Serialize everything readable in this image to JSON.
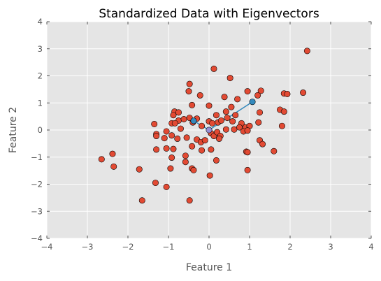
{
  "chart_data": {
    "type": "scatter",
    "title": "Standardized Data with Eigenvectors",
    "xlabel": "Feature 1",
    "ylabel": "Feature 2",
    "xlim": [
      -4,
      4
    ],
    "ylim": [
      -4,
      4
    ],
    "xticks": [
      -4,
      -3,
      -2,
      -1,
      0,
      1,
      2,
      3,
      4
    ],
    "yticks": [
      -4,
      -3,
      -2,
      -1,
      0,
      1,
      2,
      3,
      4
    ],
    "xtick_labels": [
      "−4",
      "−3",
      "−2",
      "−1",
      "0",
      "1",
      "2",
      "3",
      "4"
    ],
    "ytick_labels": [
      "−4",
      "−3",
      "−2",
      "−1",
      "0",
      "1",
      "2",
      "3",
      "4"
    ],
    "grid": true,
    "colors": {
      "background": "#e5e5e5",
      "grid": "#ffffff",
      "points": "#e24a33",
      "eigen_points": "#348abd",
      "mean_point": "#988ed5",
      "marker_edge": "#000000"
    },
    "series": [
      {
        "points": [
          [
            2.42,
            2.92
          ],
          [
            0.12,
            2.26
          ],
          [
            0.52,
            1.92
          ],
          [
            -0.48,
            1.7
          ],
          [
            -0.5,
            1.43
          ],
          [
            -0.22,
            1.28
          ],
          [
            0.38,
            1.22
          ],
          [
            0.7,
            1.14
          ],
          [
            0.95,
            1.43
          ],
          [
            1.28,
            1.45
          ],
          [
            1.2,
            1.28
          ],
          [
            1.85,
            1.35
          ],
          [
            1.93,
            1.33
          ],
          [
            2.32,
            1.38
          ],
          [
            -0.42,
            0.92
          ],
          [
            0.0,
            0.9
          ],
          [
            -0.85,
            0.68
          ],
          [
            -0.75,
            0.65
          ],
          [
            -0.88,
            0.55
          ],
          [
            -0.75,
            0.35
          ],
          [
            -0.62,
            0.4
          ],
          [
            -0.48,
            0.45
          ],
          [
            -0.3,
            0.42
          ],
          [
            -0.4,
            0.28
          ],
          [
            -0.92,
            0.25
          ],
          [
            -0.84,
            0.25
          ],
          [
            -0.7,
            0.05
          ],
          [
            -0.18,
            0.15
          ],
          [
            0.0,
            0.32
          ],
          [
            0.08,
            0.25
          ],
          [
            0.22,
            0.28
          ],
          [
            0.18,
            0.55
          ],
          [
            0.42,
            0.68
          ],
          [
            0.55,
            0.85
          ],
          [
            0.65,
            0.55
          ],
          [
            0.45,
            0.45
          ],
          [
            0.3,
            0.35
          ],
          [
            0.58,
            0.32
          ],
          [
            0.8,
            0.25
          ],
          [
            0.9,
            0.1
          ],
          [
            1.0,
            0.15
          ],
          [
            1.75,
            0.75
          ],
          [
            1.85,
            0.68
          ],
          [
            1.8,
            0.15
          ],
          [
            1.25,
            0.65
          ],
          [
            1.22,
            0.28
          ],
          [
            -1.35,
            0.22
          ],
          [
            -1.3,
            -0.15
          ],
          [
            -1.3,
            -0.22
          ],
          [
            -1.05,
            -0.05
          ],
          [
            -1.1,
            -0.3
          ],
          [
            -0.92,
            -0.2
          ],
          [
            -0.78,
            -0.32
          ],
          [
            -0.55,
            -0.28
          ],
          [
            -0.42,
            -0.6
          ],
          [
            -0.3,
            -0.35
          ],
          [
            -0.2,
            -0.45
          ],
          [
            -0.1,
            -0.38
          ],
          [
            0.05,
            -0.12
          ],
          [
            0.12,
            -0.22
          ],
          [
            0.2,
            -0.08
          ],
          [
            0.28,
            -0.22
          ],
          [
            0.25,
            -0.32
          ],
          [
            0.42,
            0.02
          ],
          [
            0.62,
            0.02
          ],
          [
            0.75,
            0.1
          ],
          [
            0.85,
            -0.05
          ],
          [
            0.95,
            -0.02
          ],
          [
            1.25,
            -0.38
          ],
          [
            1.32,
            -0.52
          ],
          [
            1.6,
            -0.78
          ],
          [
            0.92,
            -0.8
          ],
          [
            0.95,
            -0.82
          ],
          [
            -2.65,
            -1.08
          ],
          [
            -2.38,
            -0.88
          ],
          [
            -2.35,
            -1.35
          ],
          [
            -1.72,
            -1.45
          ],
          [
            -1.3,
            -0.72
          ],
          [
            -1.05,
            -0.68
          ],
          [
            -0.88,
            -0.7
          ],
          [
            -0.92,
            -1.02
          ],
          [
            -0.95,
            -1.42
          ],
          [
            -0.42,
            -1.42
          ],
          [
            -0.38,
            -1.48
          ],
          [
            -0.58,
            -0.95
          ],
          [
            -0.58,
            -1.18
          ],
          [
            -0.18,
            -0.75
          ],
          [
            0.05,
            -0.72
          ],
          [
            0.18,
            -1.12
          ],
          [
            0.02,
            -1.68
          ],
          [
            0.95,
            -1.48
          ],
          [
            -1.32,
            -1.95
          ],
          [
            -1.05,
            -2.1
          ],
          [
            -1.65,
            -2.6
          ],
          [
            -0.48,
            -2.6
          ]
        ]
      }
    ],
    "eigenvectors": [
      {
        "from": [
          0,
          0
        ],
        "to": [
          1.07,
          1.04
        ]
      },
      {
        "from": [
          0,
          0
        ],
        "to": [
          -0.38,
          0.34
        ]
      }
    ],
    "mean": [
      0,
      0
    ]
  }
}
